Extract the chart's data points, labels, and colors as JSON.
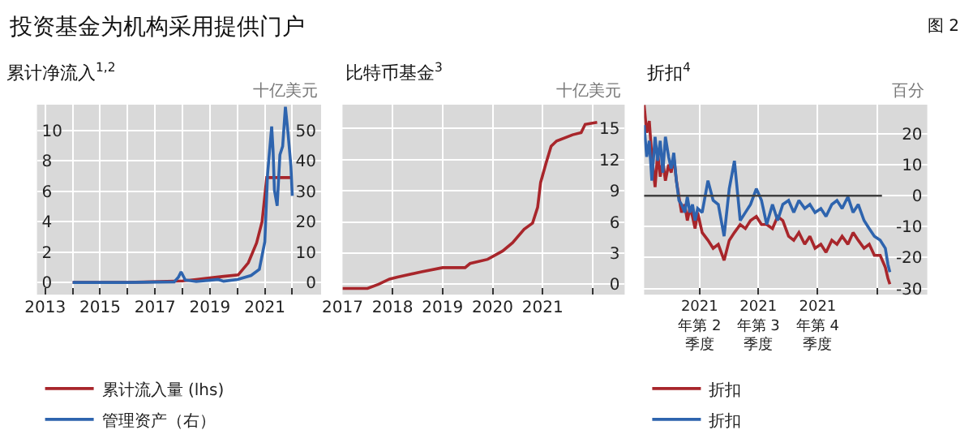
{
  "chart_data": [
    {
      "type": "line",
      "title": "累计净流入$^{1,2}$",
      "y2label": "十亿美元",
      "annotations": [
        "投资基金为机构采用提供门户",
        "图 2"
      ],
      "xlim": [
        2012.7,
        2023.05
      ],
      "xticks": [
        2013,
        {
          "value": 2014,
          "label": null
        },
        2015,
        {
          "value": 2016,
          "label": null
        },
        2017,
        {
          "value": 2018,
          "label": null
        },
        2019,
        {
          "value": 2020,
          "label": null
        },
        2021,
        {
          "value": 2022,
          "label": null
        }
      ],
      "ylim": [
        -0.8,
        11.7
      ],
      "yticks": [
        0,
        2,
        4,
        6,
        8,
        10
      ],
      "y2lim": [
        -4,
        58.5
      ],
      "y2ticks": [
        0,
        10,
        20,
        30,
        40,
        50
      ],
      "grid": true,
      "legend": "bottom",
      "series": [
        {
          "name": "累计流入量 (lhs)",
          "color": "#a8262b",
          "x": [
            2014,
            2016,
            2018,
            2018.5,
            2019.5,
            2020.03,
            2020.4,
            2020.7,
            2020.9,
            2021.07,
            2022.0
          ],
          "values": [
            0,
            0,
            0.1,
            0.2,
            0.4,
            0.5,
            1.3,
            2.6,
            4.0,
            6.9,
            6.9
          ]
        },
        {
          "name": "管理资产（右）",
          "color": "#2e64ae",
          "axis": "y2",
          "x": [
            2014,
            2016,
            2017.7,
            2017.85,
            2017.95,
            2018.1,
            2018.5,
            2019.3,
            2019.5,
            2020.0,
            2020.5,
            2020.8,
            2021.0,
            2021.1,
            2021.15,
            2021.2,
            2021.25,
            2021.3,
            2021.35,
            2021.45,
            2021.55,
            2021.65,
            2021.75,
            2021.85,
            2021.95,
            2022.0
          ],
          "values": [
            0,
            0,
            0.2,
            1.7,
            3.5,
            0.8,
            0.3,
            1.0,
            0.4,
            1.0,
            2.3,
            4.3,
            13.4,
            35.6,
            40.9,
            46,
            51.3,
            43.5,
            30.4,
            25.2,
            42,
            44.8,
            57.8,
            48.7,
            38.3,
            28.5
          ]
        }
      ]
    },
    {
      "type": "line",
      "title": "比特币基金$^{3}$",
      "ylabel": "十亿美元",
      "xlim": [
        2017.0,
        2022.64
      ],
      "xticks": [
        2017,
        2018,
        2019,
        2020,
        2021,
        {
          "value": 2022,
          "label": null
        }
      ],
      "ylim": [
        -1.0,
        17.3
      ],
      "yticks": [
        0,
        3,
        6,
        9,
        12,
        15
      ],
      "grid": true,
      "legend": false,
      "series": [
        {
          "color": "#a8262b",
          "x": [
            2017.0,
            2017.5,
            2017.72,
            2017.94,
            2018.1,
            2018.58,
            2019.0,
            2019.45,
            2019.55,
            2019.9,
            2020.2,
            2020.4,
            2020.63,
            2020.8,
            2020.9,
            2020.96,
            2021.07,
            2021.17,
            2021.28,
            2021.6,
            2021.77,
            2021.85,
            2022.09
          ],
          "values": [
            -0.4,
            -0.4,
            0,
            0.5,
            0.7,
            1.2,
            1.6,
            1.6,
            2.0,
            2.4,
            3.2,
            4.0,
            5.3,
            5.9,
            7.4,
            9.8,
            11.7,
            13.3,
            13.8,
            14.4,
            14.6,
            15.4,
            15.6
          ]
        }
      ]
    },
    {
      "type": "line",
      "title": "折扣$^{4}$",
      "ylabel": "百分",
      "xlim": [
        "2021-01-05",
        "2022-03-20"
      ],
      "xticks": [
        {
          "value": "2021-04-01",
          "label": "2021 年第 2 季度"
        },
        {
          "value": "2021-07-01",
          "label": "2021 年第 3 季度"
        },
        {
          "value": "2021-10-01",
          "label": "2021 年第 4 季度"
        },
        {
          "value": "2022-01-01",
          "label": null
        }
      ],
      "ylim": [
        -32,
        29.5
      ],
      "yticks": [
        -30,
        -20,
        -10,
        0,
        10,
        20
      ],
      "grid": true,
      "legend": "bottom",
      "ref_lines": [
        {
          "axis": "y",
          "value": 0,
          "color": "#404040"
        }
      ],
      "x": [
        "2021-01-05",
        "2021-01-09",
        "2021-01-13",
        "2021-01-17",
        "2021-01-22",
        "2021-01-26",
        "2021-01-30",
        "2021-02-03",
        "2021-02-07",
        "2021-02-12",
        "2021-02-16",
        "2021-02-20",
        "2021-02-24",
        "2021-02-28",
        "2021-03-04",
        "2021-03-09",
        "2021-03-13",
        "2021-03-17",
        "2021-03-21",
        "2021-03-25",
        "2021-03-29",
        "2021-04-05",
        "2021-04-14",
        "2021-04-22",
        "2021-04-30",
        "2021-05-09",
        "2021-05-17",
        "2021-05-25",
        "2021-06-03",
        "2021-06-11",
        "2021-06-19",
        "2021-06-28",
        "2021-07-06",
        "2021-07-14",
        "2021-07-23",
        "2021-07-31",
        "2021-08-08",
        "2021-08-17",
        "2021-08-25",
        "2021-09-02",
        "2021-09-11",
        "2021-09-19",
        "2021-09-27",
        "2021-10-06",
        "2021-10-14",
        "2021-10-23",
        "2021-10-31",
        "2021-11-08",
        "2021-11-17",
        "2021-11-25",
        "2021-12-03",
        "2021-12-12",
        "2021-12-20",
        "2021-12-28",
        "2022-01-06",
        "2022-01-14",
        "2022-01-18",
        "2022-01-21"
      ],
      "series": [
        {
          "name": "折扣",
          "color": "#a8262b",
          "values": [
            29.4,
            20.4,
            24.2,
            12.6,
            2.8,
            13.9,
            6.2,
            11.3,
            4.9,
            10.1,
            7.5,
            12.6,
            4.9,
            -0.3,
            -5.4,
            -2.8,
            -8.0,
            -4.1,
            -6.7,
            -10.6,
            -5.4,
            -11.9,
            -14.4,
            -17.0,
            -15.7,
            -20.9,
            -14.4,
            -11.9,
            -9.3,
            -10.6,
            -8.0,
            -6.7,
            -9.3,
            -9.3,
            -10.6,
            -6.7,
            -8.0,
            -13.1,
            -14.4,
            -11.9,
            -15.7,
            -13.1,
            -17.0,
            -15.7,
            -18.3,
            -14.4,
            -15.7,
            -13.1,
            -15.7,
            -11.9,
            -14.4,
            -17.0,
            -15.7,
            -19.3,
            -19.3,
            -23.2,
            -26.7,
            -28.6
          ]
        },
        {
          "name": "折扣",
          "color": "#2e64ae",
          "values": [
            22.9,
            12.6,
            17.8,
            4.9,
            19.1,
            11.3,
            17.8,
            7.5,
            19.1,
            12.6,
            8.8,
            13.9,
            4.9,
            -1.5,
            -2.8,
            -5.4,
            -0.3,
            -5.4,
            -2.8,
            -8.0,
            -4.1,
            -5.4,
            4.9,
            -1.5,
            -2.8,
            -13.1,
            2.3,
            11.3,
            -8.0,
            -5.4,
            -2.8,
            2.3,
            -1.5,
            -9.3,
            -2.8,
            -8.0,
            -2.8,
            -1.5,
            -5.4,
            -1.5,
            -4.1,
            -2.8,
            -5.4,
            -4.1,
            -6.7,
            -2.8,
            -1.5,
            -4.1,
            -0.3,
            -5.4,
            -2.8,
            -8.0,
            -10.6,
            -13.1,
            -14.4,
            -17.0,
            -22.2,
            -24.7
          ]
        }
      ]
    }
  ]
}
